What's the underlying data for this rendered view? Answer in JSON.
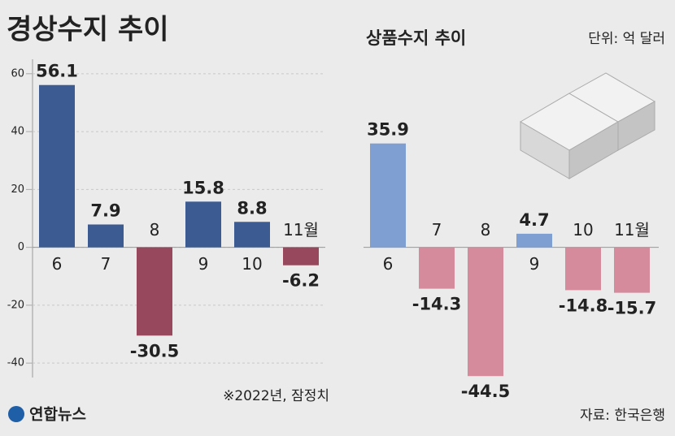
{
  "chart_data": [
    {
      "type": "bar",
      "title": "경상수지 추이",
      "categories": [
        "6",
        "7",
        "8",
        "9",
        "10",
        "11월"
      ],
      "values": [
        56.1,
        7.9,
        -30.5,
        15.8,
        8.8,
        -6.2
      ],
      "positive_color": "#3c5b92",
      "negative_color": "#98485c",
      "ylim": [
        -45,
        65
      ],
      "yticks": [
        60,
        40,
        20,
        0,
        -20,
        -40
      ],
      "grid": true
    },
    {
      "type": "bar",
      "title": "상품수지 추이",
      "categories": [
        "6",
        "7",
        "8",
        "9",
        "10",
        "11월"
      ],
      "values": [
        35.9,
        -14.3,
        -44.5,
        4.7,
        -14.8,
        -15.7
      ],
      "positive_color": "#7f9ed2",
      "negative_color": "#d58b9b",
      "ylim": [
        -45,
        65
      ],
      "grid": false
    }
  ],
  "unit": "단위: 억 달러",
  "note": "※2022년, 잠정치",
  "source": "자료: 한국은행",
  "logo": "연합뉴스"
}
